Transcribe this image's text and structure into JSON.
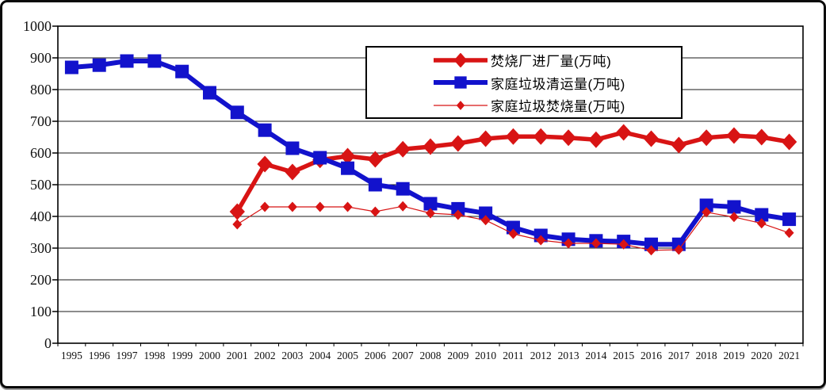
{
  "figure": {
    "background": "#ffffff",
    "frame_border_color": "#0a0a0a",
    "plot_border_color": "#000000",
    "gridline_color": "#1a1a1a"
  },
  "chart_data": {
    "type": "line",
    "x": [
      1995,
      1996,
      1997,
      1998,
      1999,
      2000,
      2001,
      2002,
      2003,
      2004,
      2005,
      2006,
      2007,
      2008,
      2009,
      2010,
      2011,
      2012,
      2013,
      2014,
      2015,
      2016,
      2017,
      2018,
      2019,
      2020,
      2021
    ],
    "series": [
      {
        "key": "incinerator-intake",
        "name": "焚烧厂进厂量(万吨)",
        "color": "#d81414",
        "marker": "diamond",
        "marker_size": 21,
        "line_width": 5.5,
        "values": [
          null,
          null,
          null,
          null,
          null,
          null,
          415,
          565,
          540,
          578,
          590,
          580,
          612,
          620,
          630,
          645,
          652,
          652,
          648,
          642,
          665,
          645,
          625,
          648,
          655,
          650,
          635
        ]
      },
      {
        "key": "household-waste-collected",
        "name": "家庭垃圾清运量(万吨)",
        "color": "#1212cc",
        "marker": "square",
        "marker_size": 17,
        "line_width": 6,
        "values": [
          870,
          877,
          890,
          890,
          857,
          790,
          728,
          672,
          615,
          585,
          552,
          500,
          487,
          440,
          424,
          410,
          365,
          340,
          328,
          323,
          321,
          312,
          312,
          435,
          430,
          405,
          391
        ]
      },
      {
        "key": "household-waste-incinerated",
        "name": "家庭垃圾焚烧量(万吨)",
        "color": "#d81414",
        "marker": "diamond-small",
        "marker_size": 13,
        "line_width": 1.2,
        "values": [
          null,
          null,
          null,
          null,
          null,
          null,
          375,
          430,
          430,
          430,
          430,
          415,
          432,
          410,
          405,
          388,
          345,
          325,
          315,
          315,
          312,
          293,
          295,
          413,
          398,
          378,
          348
        ]
      }
    ],
    "ylim": [
      0,
      1000
    ],
    "y_tick_step": 100,
    "grid": true,
    "legend_position": "top-center-inside"
  }
}
